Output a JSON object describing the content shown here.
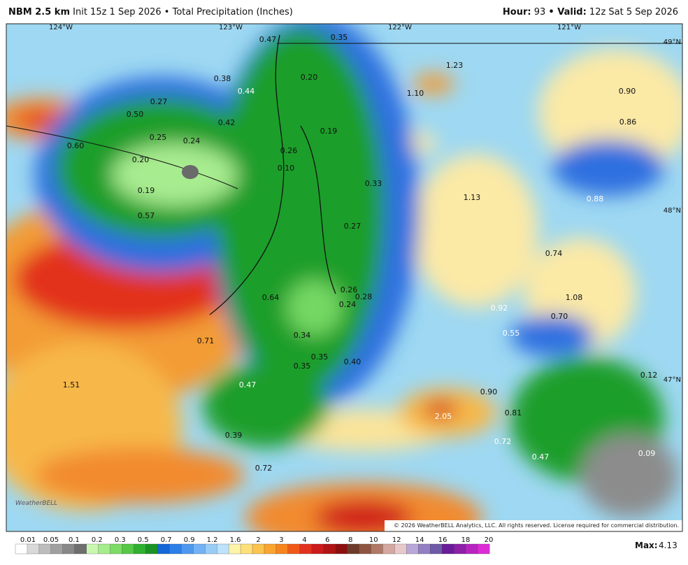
{
  "header": {
    "model": "NBM 2.5 km",
    "description": "Init 15z 1 Sep 2026 • Total Precipitation (Inches)",
    "hour_label": "Hour:",
    "hour": "93",
    "valid_label": "• Valid:",
    "valid": "12z Sat 5 Sep 2026"
  },
  "map": {
    "lon_labels": [
      "124°W",
      "123°W",
      "122°W",
      "121°W"
    ],
    "lat_labels": [
      "49°N",
      "48°N",
      "47°N"
    ],
    "values": [
      "0.47",
      "0.35",
      "1.23",
      "0.38",
      "0.20",
      "1.10",
      "0.90",
      "0.44",
      "0.27",
      "0.50",
      "0.42",
      "0.86",
      "0.19",
      "0.25",
      "0.24",
      "0.60",
      "0.26",
      "0.20",
      "0.10",
      "0.33",
      "0.19",
      "1.13",
      "0.88",
      "0.57",
      "0.27",
      "0.74",
      "0.26",
      "0.28",
      "1.08",
      "0.64",
      "0.24",
      "0.92",
      "0.70",
      "0.55",
      "0.34",
      "0.71",
      "0.35",
      "0.40",
      "0.35",
      "0.12",
      "1.51",
      "0.47",
      "0.90",
      "0.81",
      "2.05",
      "0.39",
      "0.72",
      "0.47",
      "0.09",
      "0.72"
    ],
    "logo": "WeatherBELL",
    "copyright": "© 2026 WeatherBELL Analytics, LLC. All rights reserved. License required for commercial distribution."
  },
  "colorbar": {
    "labels": [
      "0.01",
      "0.05",
      "0.1",
      "0.2",
      "0.3",
      "0.5",
      "0.7",
      "0.9",
      "1.2",
      "1.6",
      "2",
      "3",
      "4",
      "6",
      "8",
      "10",
      "12",
      "14",
      "16",
      "18",
      "20"
    ]
  },
  "max": {
    "label": "Max:",
    "value": "4.13"
  }
}
